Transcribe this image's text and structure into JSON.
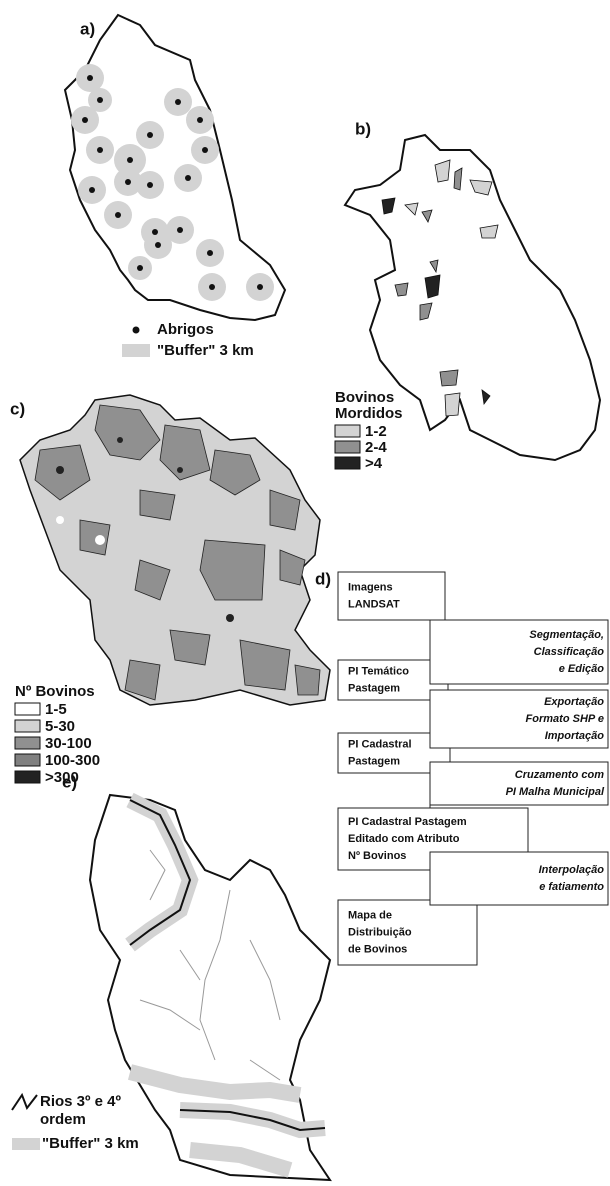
{
  "panel_a": {
    "label": "a)",
    "legend": [
      "Abrigos",
      "\"Buffer\" 3 km"
    ]
  },
  "panel_b": {
    "label": "b)",
    "legend_title": [
      "Bovinos",
      "Mordidos"
    ],
    "legend": [
      "1-2",
      "2-4",
      ">4"
    ]
  },
  "panel_c": {
    "label": "c)",
    "legend_title": "Nº Bovinos",
    "legend": [
      "1-5",
      "5-30",
      "30-100",
      "100-300",
      ">300"
    ]
  },
  "panel_d": {
    "label": "d)",
    "boxes": [
      [
        "Imagens",
        "LANDSAT"
      ],
      [
        "PI Temático",
        "Pastagem"
      ],
      [
        "PI Cadastral",
        "Pastagem"
      ],
      [
        "PI Cadastral  Pastagem",
        "Editado com  Atributo",
        "Nº Bovinos"
      ],
      [
        "Mapa de",
        "Distribuição",
        "de Bovinos"
      ]
    ],
    "steps": [
      [
        "Segmentação,",
        "Classificação",
        "e Edição"
      ],
      [
        "Exportação",
        "Formato SHP e",
        "Importação"
      ],
      [
        "Cruzamento com",
        "PI Malha Municipal"
      ],
      [
        "Interpolação",
        "e fatiamento"
      ]
    ]
  },
  "panel_e": {
    "label": "e)",
    "legend": [
      [
        "Rios 3º e 4º",
        "ordem"
      ],
      "\"Buffer\" 3 km"
    ]
  }
}
